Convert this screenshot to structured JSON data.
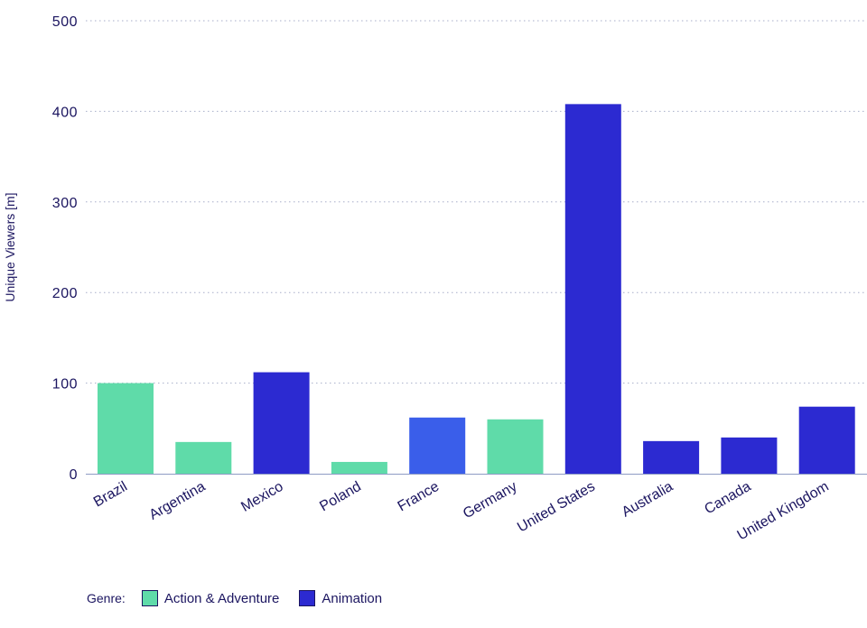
{
  "chart_data": {
    "type": "bar",
    "title": "",
    "xlabel": "",
    "ylabel": "Unique Viewers [m]",
    "ylim": [
      0,
      500
    ],
    "yticks": [
      0,
      100,
      200,
      300,
      400,
      500
    ],
    "grid": true,
    "categories": [
      "Brazil",
      "Argentina",
      "Mexico",
      "Poland",
      "France",
      "Germany",
      "United States",
      "Australia",
      "Canada",
      "United Kingdom"
    ],
    "values": [
      100,
      35,
      112,
      13,
      62,
      60,
      408,
      36,
      40,
      74
    ],
    "bar_colors": [
      "#5fdba9",
      "#5fdba9",
      "#2c2ad1",
      "#5fdba9",
      "#3a5eea",
      "#5fdba9",
      "#2c2ad1",
      "#2c2ad1",
      "#2c2ad1",
      "#2c2ad1"
    ],
    "legend": {
      "title": "Genre:",
      "placement": "bottom-left",
      "items": [
        {
          "label": "Action & Adventure",
          "color": "#5fdba9"
        },
        {
          "label": "Animation",
          "color": "#2c2ad1"
        }
      ]
    }
  }
}
